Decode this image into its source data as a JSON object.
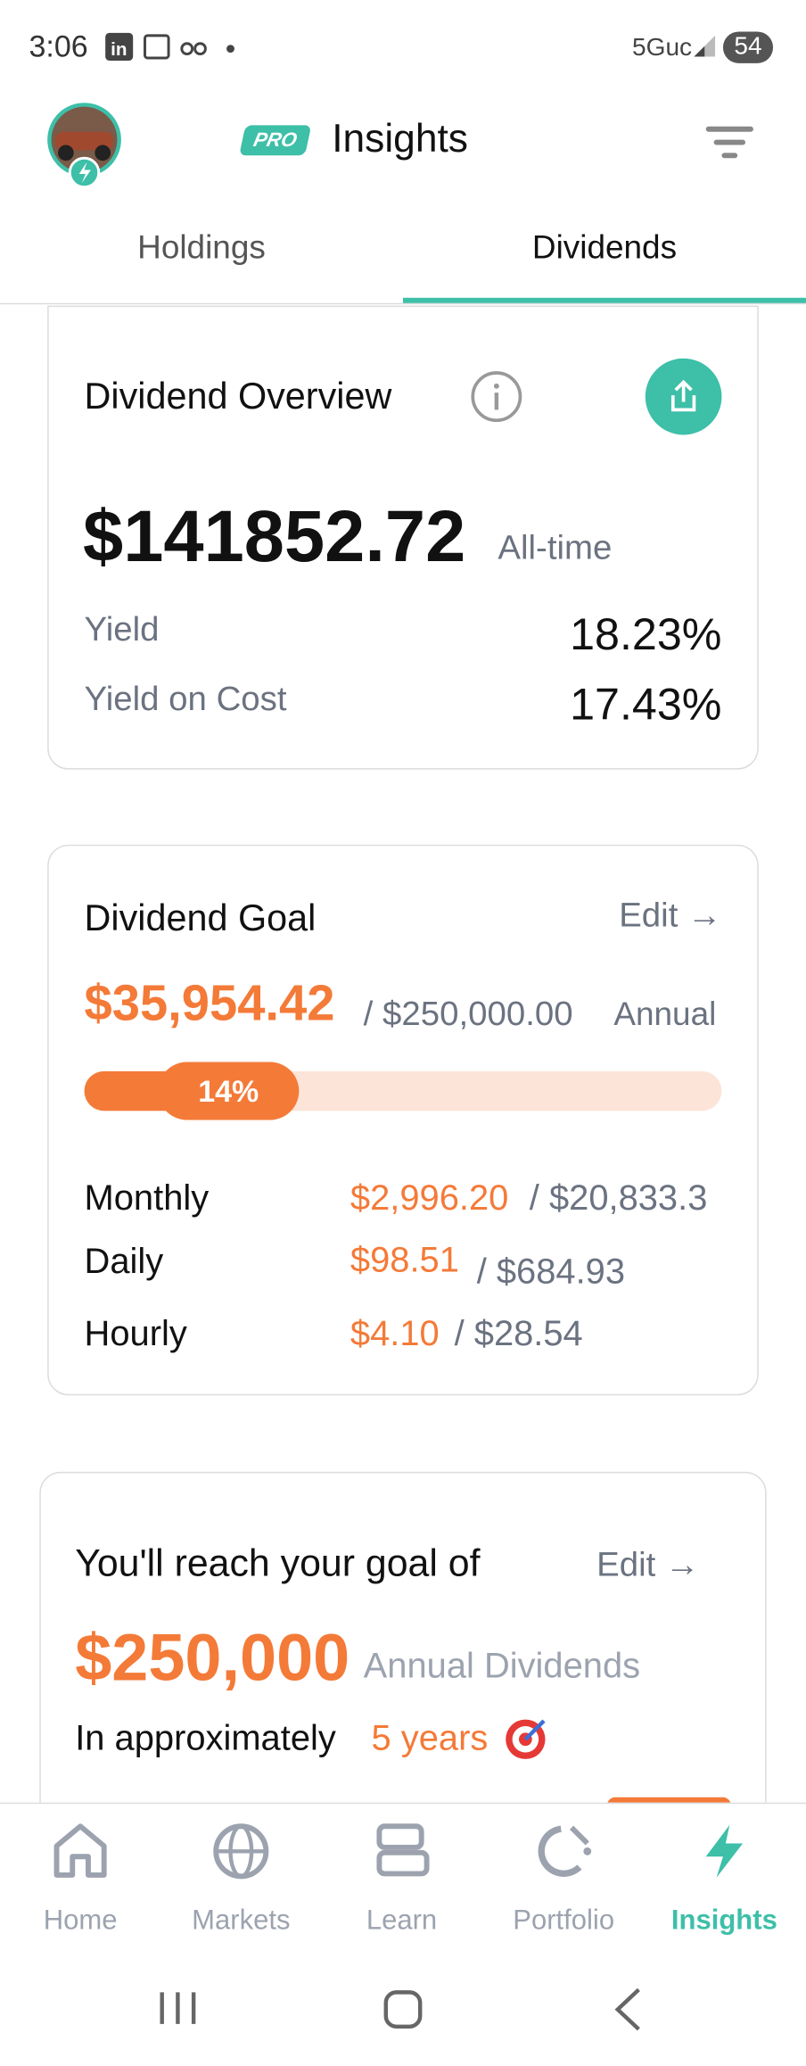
{
  "status_bar": {
    "time": "3:06",
    "network": "5Guc",
    "battery": "54"
  },
  "header": {
    "badge": "PRO",
    "title": "Insights"
  },
  "tabs": [
    "Holdings",
    "Dividends"
  ],
  "overview": {
    "title": "Dividend Overview",
    "amount": "$141852.72",
    "period": "All-time",
    "rows": [
      {
        "label": "Yield",
        "value": "18.23%"
      },
      {
        "label": "Yield on Cost",
        "value": "17.43%"
      }
    ]
  },
  "goal": {
    "title": "Dividend Goal",
    "edit": "Edit →",
    "current": "$35,954.42",
    "target": "/ $250,000.00",
    "period": "Annual",
    "progress": "14%",
    "rows": [
      {
        "label": "Monthly",
        "current": "$2,996.20",
        "target": "/ $20,833.3"
      },
      {
        "label": "Daily",
        "current": "$98.51",
        "target": "/ $684.93"
      },
      {
        "label": "Hourly",
        "current": "$4.10",
        "target": "/ $28.54"
      }
    ]
  },
  "reach": {
    "title": "You'll reach your goal of",
    "edit": "Edit →",
    "amount": "$250,000",
    "period": "Annual Dividends",
    "prefix": "In approximately",
    "time": "5 years"
  },
  "nav": [
    "Home",
    "Markets",
    "Learn",
    "Portfolio",
    "Insights"
  ]
}
